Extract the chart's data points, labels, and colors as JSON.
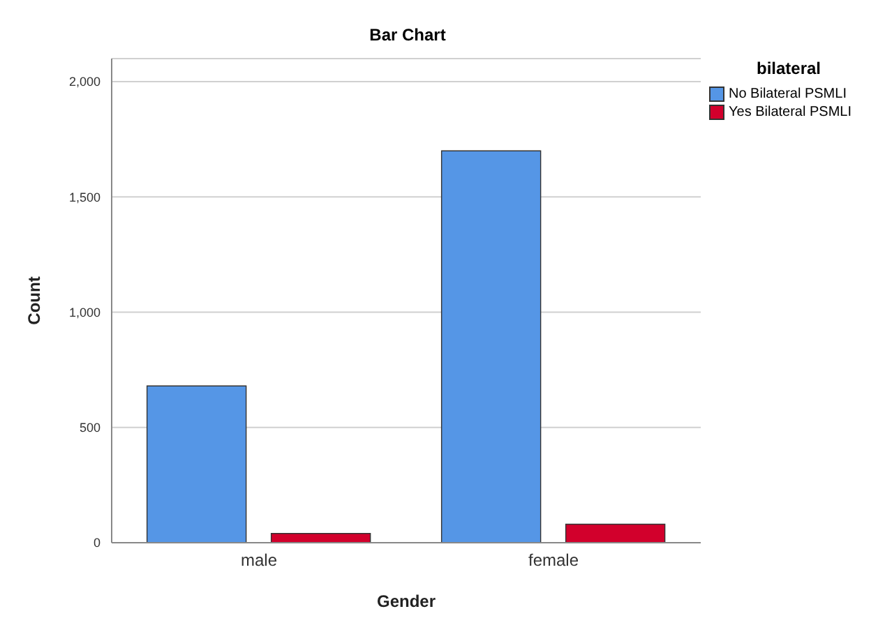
{
  "chart_data": {
    "type": "bar",
    "title": "Bar Chart",
    "xlabel": "Gender",
    "ylabel": "Count",
    "legend_title": "bilateral",
    "categories": [
      "male",
      "female"
    ],
    "series": [
      {
        "name": "No Bilateral PSMLI",
        "color": "#5596e6",
        "values": [
          680,
          1700
        ]
      },
      {
        "name": "Yes Bilateral PSMLI",
        "color": "#d2002c",
        "values": [
          40,
          80
        ]
      }
    ],
    "ylim": [
      0,
      2100
    ],
    "yticks": [
      0,
      500,
      {
        "value": 1000,
        "label": "1,000"
      },
      {
        "value": 1500,
        "label": "1,500"
      },
      {
        "value": 2000,
        "label": "2,000"
      }
    ],
    "grid": "y",
    "legend": "top right"
  }
}
